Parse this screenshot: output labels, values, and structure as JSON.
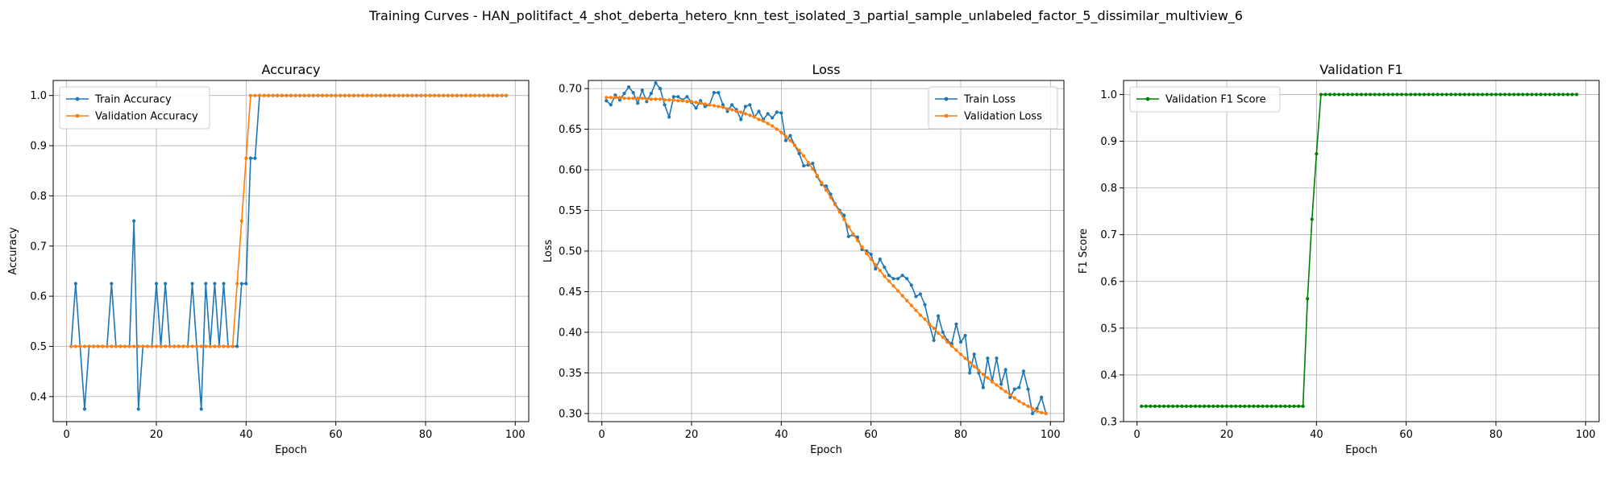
{
  "suptitle": "Training Curves - HAN_politifact_4_shot_deberta_hetero_knn_test_isolated_3_partial_sample_unlabeled_factor_5_dissimilar_multiview_6",
  "colors": {
    "train": "#1f77b4",
    "validation": "#ff7f0e",
    "f1": "#008000",
    "grid": "#b0b0b0"
  },
  "chart_data": [
    {
      "type": "line",
      "title": "Accuracy",
      "xlabel": "Epoch",
      "ylabel": "Accuracy",
      "xlim": [
        -3,
        103
      ],
      "ylim": [
        0.35,
        1.03
      ],
      "xticks": [
        0,
        20,
        40,
        60,
        80,
        100
      ],
      "yticks": [
        0.4,
        0.5,
        0.6,
        0.7,
        0.8,
        0.9,
        1.0
      ],
      "ytick_labels": [
        "0.4",
        "0.5",
        "0.6",
        "0.7",
        "0.8",
        "0.9",
        "1.0"
      ],
      "grid": true,
      "legend": "upper left",
      "series": [
        {
          "name": "Train Accuracy",
          "color": "#1f77b4",
          "values": [
            0.5,
            0.625,
            0.5,
            0.375,
            0.5,
            0.5,
            0.5,
            0.5,
            0.5,
            0.625,
            0.5,
            0.5,
            0.5,
            0.5,
            0.75,
            0.375,
            0.5,
            0.5,
            0.5,
            0.625,
            0.5,
            0.625,
            0.5,
            0.5,
            0.5,
            0.5,
            0.5,
            0.625,
            0.5,
            0.375,
            0.625,
            0.5,
            0.625,
            0.5,
            0.625,
            0.5,
            0.5,
            0.5,
            0.625,
            0.625,
            0.875,
            0.875,
            1,
            1,
            1,
            1,
            1,
            1,
            1,
            1,
            1,
            1,
            1,
            1,
            1,
            1,
            1,
            1,
            1,
            1,
            1,
            1,
            1,
            1,
            1,
            1,
            1,
            1,
            1,
            1,
            1,
            1,
            1,
            1,
            1,
            1,
            1,
            1,
            1,
            1,
            1,
            1,
            1,
            1,
            1,
            1,
            1,
            1,
            1,
            1,
            1,
            1,
            1,
            1,
            1,
            1,
            1,
            1
          ]
        },
        {
          "name": "Validation Accuracy",
          "color": "#ff7f0e",
          "values": [
            0.5,
            0.5,
            0.5,
            0.5,
            0.5,
            0.5,
            0.5,
            0.5,
            0.5,
            0.5,
            0.5,
            0.5,
            0.5,
            0.5,
            0.5,
            0.5,
            0.5,
            0.5,
            0.5,
            0.5,
            0.5,
            0.5,
            0.5,
            0.5,
            0.5,
            0.5,
            0.5,
            0.5,
            0.5,
            0.5,
            0.5,
            0.5,
            0.5,
            0.5,
            0.5,
            0.5,
            0.5,
            0.625,
            0.75,
            0.875,
            1,
            1,
            1,
            1,
            1,
            1,
            1,
            1,
            1,
            1,
            1,
            1,
            1,
            1,
            1,
            1,
            1,
            1,
            1,
            1,
            1,
            1,
            1,
            1,
            1,
            1,
            1,
            1,
            1,
            1,
            1,
            1,
            1,
            1,
            1,
            1,
            1,
            1,
            1,
            1,
            1,
            1,
            1,
            1,
            1,
            1,
            1,
            1,
            1,
            1,
            1,
            1,
            1,
            1,
            1,
            1,
            1,
            1
          ]
        }
      ]
    },
    {
      "type": "line",
      "title": "Loss",
      "xlabel": "Epoch",
      "ylabel": "Loss",
      "xlim": [
        -3,
        103
      ],
      "ylim": [
        0.29,
        0.71
      ],
      "xticks": [
        0,
        20,
        40,
        60,
        80,
        100
      ],
      "yticks": [
        0.3,
        0.35,
        0.4,
        0.45,
        0.5,
        0.55,
        0.6,
        0.65,
        0.7
      ],
      "ytick_labels": [
        "0.30",
        "0.35",
        "0.40",
        "0.45",
        "0.50",
        "0.55",
        "0.60",
        "0.65",
        "0.70"
      ],
      "grid": true,
      "legend": "upper right",
      "series": [
        {
          "name": "Train Loss",
          "color": "#1f77b4",
          "values": [
            0.685,
            0.68,
            0.692,
            0.686,
            0.694,
            0.702,
            0.695,
            0.682,
            0.698,
            0.684,
            0.694,
            0.707,
            0.7,
            0.68,
            0.665,
            0.69,
            0.69,
            0.686,
            0.69,
            0.683,
            0.676,
            0.685,
            0.678,
            0.68,
            0.695,
            0.695,
            0.68,
            0.672,
            0.68,
            0.674,
            0.662,
            0.678,
            0.68,
            0.665,
            0.672,
            0.662,
            0.669,
            0.664,
            0.671,
            0.67,
            0.636,
            0.642,
            0.63,
            0.62,
            0.605,
            0.606,
            0.608,
            0.592,
            0.582,
            0.58,
            0.57,
            0.558,
            0.55,
            0.544,
            0.518,
            0.52,
            0.517,
            0.502,
            0.5,
            0.496,
            0.478,
            0.49,
            0.48,
            0.47,
            0.466,
            0.466,
            0.47,
            0.466,
            0.458,
            0.444,
            0.447,
            0.434,
            0.41,
            0.39,
            0.42,
            0.4,
            0.39,
            0.386,
            0.41,
            0.388,
            0.396,
            0.35,
            0.373,
            0.35,
            0.332,
            0.368,
            0.34,
            0.368,
            0.336,
            0.354,
            0.32,
            0.33,
            0.332,
            0.352,
            0.33,
            0.3,
            0.306,
            0.32,
            0.3
          ]
        },
        {
          "name": "Validation Loss",
          "color": "#ff7f0e",
          "values": [
            0.689,
            0.689,
            0.689,
            0.689,
            0.688,
            0.688,
            0.688,
            0.688,
            0.688,
            0.687,
            0.687,
            0.687,
            0.687,
            0.686,
            0.686,
            0.686,
            0.685,
            0.685,
            0.684,
            0.684,
            0.683,
            0.682,
            0.681,
            0.68,
            0.679,
            0.678,
            0.677,
            0.675,
            0.674,
            0.672,
            0.671,
            0.669,
            0.667,
            0.665,
            0.662,
            0.66,
            0.657,
            0.654,
            0.65,
            0.646,
            0.641,
            0.636,
            0.63,
            0.624,
            0.617,
            0.609,
            0.601,
            0.593,
            0.584,
            0.575,
            0.566,
            0.557,
            0.548,
            0.539,
            0.53,
            0.521,
            0.513,
            0.505,
            0.497,
            0.49,
            0.483,
            0.476,
            0.469,
            0.463,
            0.457,
            0.451,
            0.445,
            0.439,
            0.433,
            0.427,
            0.421,
            0.416,
            0.41,
            0.405,
            0.399,
            0.394,
            0.388,
            0.383,
            0.378,
            0.373,
            0.368,
            0.363,
            0.358,
            0.353,
            0.348,
            0.344,
            0.339,
            0.335,
            0.331,
            0.327,
            0.323,
            0.319,
            0.315,
            0.312,
            0.309,
            0.306,
            0.303,
            0.301,
            0.3
          ]
        }
      ]
    },
    {
      "type": "line",
      "title": "Validation F1",
      "xlabel": "Epoch",
      "ylabel": "F1 Score",
      "xlim": [
        -3,
        103
      ],
      "ylim": [
        0.3,
        1.03
      ],
      "xticks": [
        0,
        20,
        40,
        60,
        80,
        100
      ],
      "yticks": [
        0.3,
        0.4,
        0.5,
        0.6,
        0.7,
        0.8,
        0.9,
        1.0
      ],
      "ytick_labels": [
        "0.3",
        "0.4",
        "0.5",
        "0.6",
        "0.7",
        "0.8",
        "0.9",
        "1.0"
      ],
      "grid": true,
      "legend": "upper left",
      "series": [
        {
          "name": "Validation F1 Score",
          "color": "#008000",
          "values": [
            0.333,
            0.333,
            0.333,
            0.333,
            0.333,
            0.333,
            0.333,
            0.333,
            0.333,
            0.333,
            0.333,
            0.333,
            0.333,
            0.333,
            0.333,
            0.333,
            0.333,
            0.333,
            0.333,
            0.333,
            0.333,
            0.333,
            0.333,
            0.333,
            0.333,
            0.333,
            0.333,
            0.333,
            0.333,
            0.333,
            0.333,
            0.333,
            0.333,
            0.333,
            0.333,
            0.333,
            0.333,
            0.563,
            0.733,
            0.873,
            1,
            1,
            1,
            1,
            1,
            1,
            1,
            1,
            1,
            1,
            1,
            1,
            1,
            1,
            1,
            1,
            1,
            1,
            1,
            1,
            1,
            1,
            1,
            1,
            1,
            1,
            1,
            1,
            1,
            1,
            1,
            1,
            1,
            1,
            1,
            1,
            1,
            1,
            1,
            1,
            1,
            1,
            1,
            1,
            1,
            1,
            1,
            1,
            1,
            1,
            1,
            1,
            1,
            1,
            1,
            1,
            1,
            1
          ]
        }
      ]
    }
  ]
}
